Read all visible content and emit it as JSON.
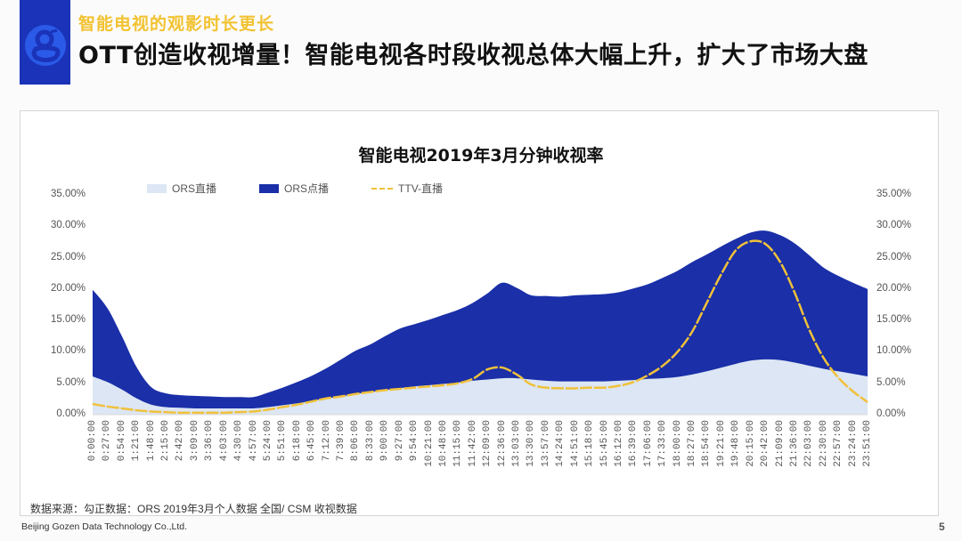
{
  "header": {
    "subtitle": "智能电视的观影时长更长",
    "title": "OTT创造收视增量！智能电视各时段收视总体大幅上升，扩大了市场大盘",
    "logo_icon": "gozen-g-logo-icon"
  },
  "colors": {
    "ors_live": "#dce6f4",
    "ors_vod": "#1a2fa8",
    "ttv_live": "#f0c13a",
    "logo_bg": "#1a33b8",
    "subtitle": "#f2c230"
  },
  "legend": [
    {
      "label": "ORS直播"
    },
    {
      "label": "ORS点播"
    },
    {
      "label": "TTV-直播"
    }
  ],
  "axis": {
    "left_ticks": [
      "35.00%",
      "30.00%",
      "25.00%",
      "20.00%",
      "15.00%",
      "10.00%",
      "5.00%",
      "0.00%"
    ],
    "right_ticks": [
      "35.00%",
      "30.00%",
      "25.00%",
      "20.00%",
      "15.00%",
      "10.00%",
      "5.00%",
      "0.00%"
    ]
  },
  "chart_data": {
    "type": "area",
    "title": "智能电视2019年3月分钟收视率",
    "xlabel": "",
    "ylabel": "",
    "ylim": [
      0,
      35
    ],
    "y_format": "percent",
    "legend_position": "top",
    "grid": false,
    "categories": [
      "0:00:00",
      "0:27:00",
      "0:54:00",
      "1:21:00",
      "1:48:00",
      "2:15:00",
      "2:42:00",
      "3:09:00",
      "3:36:00",
      "4:03:00",
      "4:30:00",
      "4:57:00",
      "5:24:00",
      "5:51:00",
      "6:18:00",
      "6:45:00",
      "7:12:00",
      "7:39:00",
      "8:06:00",
      "8:33:00",
      "9:00:00",
      "9:27:00",
      "9:54:00",
      "10:21:00",
      "10:48:00",
      "11:15:00",
      "11:42:00",
      "12:09:00",
      "12:36:00",
      "13:03:00",
      "13:30:00",
      "13:57:00",
      "14:24:00",
      "14:51:00",
      "15:18:00",
      "15:45:00",
      "16:12:00",
      "16:39:00",
      "17:06:00",
      "17:33:00",
      "18:00:00",
      "18:27:00",
      "18:54:00",
      "19:21:00",
      "19:48:00",
      "20:15:00",
      "20:42:00",
      "21:09:00",
      "21:36:00",
      "22:03:00",
      "22:30:00",
      "22:57:00",
      "23:24:00",
      "23:51:00"
    ],
    "series": [
      {
        "name": "ORS直播",
        "kind": "stacked-area",
        "values": [
          6.1,
          5.2,
          4.0,
          2.6,
          1.6,
          1.2,
          1.1,
          1.0,
          1.0,
          1.0,
          1.0,
          1.0,
          1.2,
          1.5,
          1.8,
          2.2,
          2.6,
          2.9,
          3.3,
          3.6,
          3.9,
          4.2,
          4.5,
          4.7,
          4.9,
          5.1,
          5.4,
          5.6,
          5.8,
          5.8,
          5.6,
          5.4,
          5.3,
          5.3,
          5.3,
          5.3,
          5.4,
          5.5,
          5.7,
          5.8,
          6.0,
          6.4,
          6.9,
          7.5,
          8.1,
          8.6,
          8.8,
          8.7,
          8.3,
          7.8,
          7.3,
          6.9,
          6.5,
          6.1
        ]
      },
      {
        "name": "ORS点播",
        "kind": "stacked-area",
        "values": [
          13.8,
          11.8,
          8.5,
          5.0,
          2.8,
          2.2,
          2.0,
          2.0,
          1.9,
          1.8,
          1.8,
          1.8,
          2.3,
          2.8,
          3.4,
          4.0,
          4.8,
          5.9,
          6.9,
          7.6,
          8.6,
          9.5,
          9.9,
          10.4,
          11.0,
          11.6,
          12.4,
          13.7,
          15.2,
          14.4,
          13.4,
          13.5,
          13.5,
          13.7,
          13.8,
          13.9,
          14.1,
          14.6,
          15.1,
          16.0,
          16.9,
          17.9,
          18.6,
          19.3,
          19.9,
          20.4,
          20.5,
          19.9,
          19.0,
          17.6,
          16.1,
          15.2,
          14.5,
          13.9
        ]
      },
      {
        "name": "TTV-直播",
        "kind": "dashed-line",
        "values": [
          1.7,
          1.3,
          1.0,
          0.7,
          0.5,
          0.4,
          0.3,
          0.3,
          0.3,
          0.3,
          0.4,
          0.5,
          0.8,
          1.2,
          1.6,
          2.1,
          2.6,
          2.9,
          3.3,
          3.6,
          3.9,
          4.1,
          4.3,
          4.5,
          4.7,
          5.0,
          5.7,
          7.2,
          7.5,
          6.4,
          4.8,
          4.3,
          4.2,
          4.2,
          4.3,
          4.3,
          4.6,
          5.2,
          6.3,
          7.8,
          10.0,
          13.2,
          17.8,
          22.4,
          26.2,
          27.6,
          27.2,
          24.4,
          19.5,
          13.6,
          9.0,
          5.9,
          3.7,
          2.0
        ]
      }
    ]
  },
  "source_note": "数据来源：勾正数据：ORS 2019年3月个人数据 全国/ CSM 收视数据",
  "footer": {
    "company": "Beijing Gozen Data Technology Co.,Ltd.",
    "page_number": "5"
  }
}
